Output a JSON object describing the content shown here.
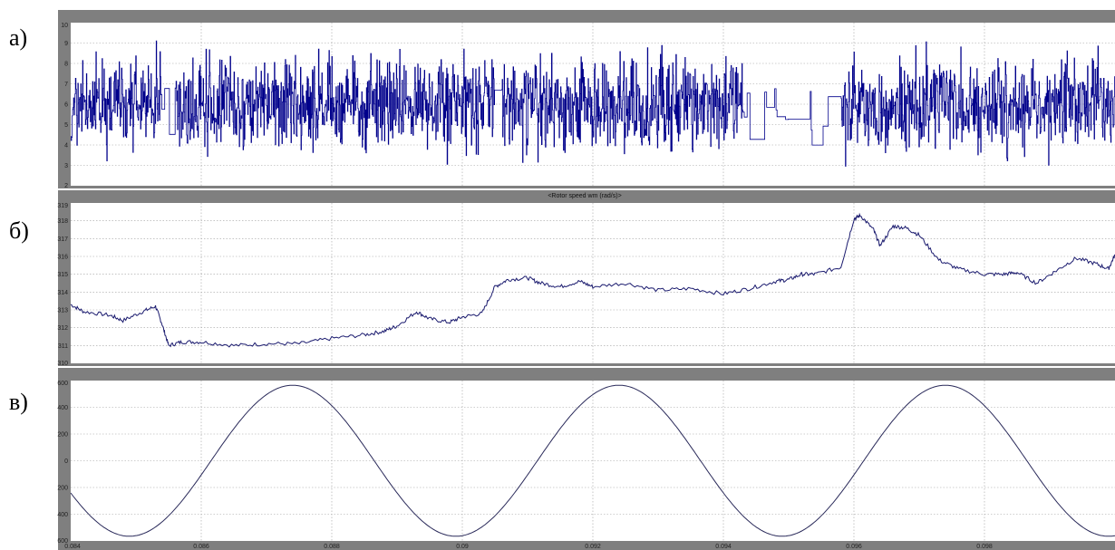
{
  "figure": {
    "panel_letters": [
      "а)",
      "б)",
      "в)"
    ]
  },
  "colors": {
    "frame_bg": "#7f7f7f",
    "axes_bg": "#ffffff",
    "grid": "#a0a0a0",
    "panel_a_line": "#00008b",
    "panel_b_line": "#1a1a6e",
    "panel_c_line": "#2a2a5a"
  },
  "chart_data": [
    {
      "type": "line",
      "panel": "а)",
      "title": "",
      "xlim": [
        0.084,
        0.1
      ],
      "ylim": [
        2,
        10
      ],
      "yticks": [
        "2",
        "3",
        "4",
        "5",
        "6",
        "7",
        "8",
        "9",
        "10"
      ],
      "grid": true,
      "series": [
        {
          "style": "noisy-step",
          "mean": 6.0,
          "min": 2.5,
          "max": 9.3,
          "active_intervals": [
            [
              0.084,
              0.0854
            ],
            [
              0.0856,
              0.0905
            ],
            [
              0.0906,
              0.0943
            ],
            [
              0.0958,
              0.1
            ]
          ],
          "sparse_intervals": [
            [
              0.0854,
              0.0856
            ],
            [
              0.0905,
              0.0906
            ],
            [
              0.0943,
              0.0958
            ]
          ]
        }
      ]
    },
    {
      "type": "line",
      "panel": "б)",
      "title": "<Rotor speed wm (rad/s)>",
      "xlim": [
        0.084,
        0.1
      ],
      "ylim": [
        310,
        319
      ],
      "yticks": [
        "310",
        "311",
        "312",
        "313",
        "314",
        "315",
        "316",
        "317",
        "318",
        "319"
      ],
      "grid": true,
      "series": [
        {
          "x": [
            0.084,
            0.0842,
            0.0846,
            0.0848,
            0.0851,
            0.0853,
            0.0854,
            0.0855,
            0.0857,
            0.086,
            0.0865,
            0.087,
            0.0875,
            0.088,
            0.0885,
            0.0888,
            0.089,
            0.0893,
            0.0895,
            0.0898,
            0.09,
            0.0903,
            0.0905,
            0.0907,
            0.091,
            0.0912,
            0.0915,
            0.0918,
            0.092,
            0.0925,
            0.093,
            0.0935,
            0.094,
            0.0944,
            0.0948,
            0.095,
            0.0952,
            0.0954,
            0.0958,
            0.096,
            0.0961,
            0.0963,
            0.0964,
            0.0966,
            0.0968,
            0.097,
            0.0973,
            0.0976,
            0.098,
            0.0983,
            0.0985,
            0.0988,
            0.0991,
            0.0994,
            0.0997,
            0.0999,
            0.1
          ],
          "y": [
            313.3,
            312.9,
            312.7,
            312.4,
            312.9,
            313.2,
            312.2,
            311.0,
            311.2,
            311.2,
            311.0,
            311.1,
            311.1,
            311.4,
            311.6,
            311.8,
            312.1,
            312.9,
            312.5,
            312.3,
            312.6,
            312.8,
            314.3,
            314.7,
            314.8,
            314.5,
            314.3,
            314.6,
            314.3,
            314.5,
            314.1,
            314.2,
            313.9,
            314.2,
            314.6,
            314.7,
            315.0,
            315.0,
            315.4,
            318.1,
            318.3,
            317.5,
            316.6,
            317.7,
            317.6,
            317.2,
            315.8,
            315.3,
            315.0,
            315.0,
            315.1,
            314.5,
            315.2,
            315.9,
            315.6,
            315.3,
            316.1
          ]
        }
      ]
    },
    {
      "type": "line",
      "panel": "в)",
      "title": "",
      "xlim": [
        0.084,
        0.1
      ],
      "ylim": [
        -600,
        600
      ],
      "yticks": [
        "600",
        "400",
        "200",
        "0",
        "200",
        "400",
        "600"
      ],
      "xticks": [
        "0.084",
        "0.086",
        "0.088",
        "0.09",
        "0.092",
        "0.094",
        "0.096",
        "0.098"
      ],
      "grid": true,
      "series": [
        {
          "function": "sine",
          "amplitude": 565,
          "period": 0.005,
          "peak_at": 0.0874
        }
      ]
    }
  ]
}
